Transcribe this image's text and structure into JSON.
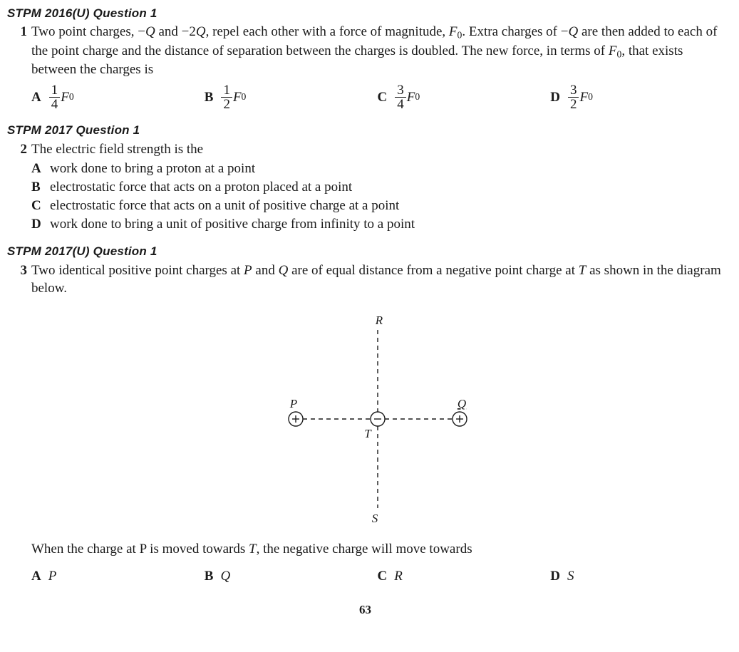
{
  "q1": {
    "source": "STPM 2016(U) Question 1",
    "number": "1",
    "stem_html": "Two point charges, &minus;<span class='ital'>Q</span> and &minus;2<span class='ital'>Q</span>, repel each other with a force of magnitude, <span class='term-F'>F</span><span class='sub0'>0</span>. Extra charges of &minus;<span class='ital'>Q</span> are then added to each of the point charge and the distance of separation between the charges is doubled. The new force, in terms of <span class='term-F'>F</span><span class='sub0'>0</span>, that exists between the charges is",
    "choices": [
      {
        "label": "A",
        "num": "1",
        "den": "4"
      },
      {
        "label": "B",
        "num": "1",
        "den": "2"
      },
      {
        "label": "C",
        "num": "3",
        "den": "4"
      },
      {
        "label": "D",
        "num": "3",
        "den": "2"
      }
    ]
  },
  "q2": {
    "source": "STPM 2017 Question 1",
    "number": "2",
    "stem": "The electric field strength is the",
    "choices": [
      {
        "label": "A",
        "text": "work done to bring a proton at a point"
      },
      {
        "label": "B",
        "text": "electrostatic force that acts on a proton placed at a point"
      },
      {
        "label": "C",
        "text": "electrostatic force that acts on a unit of positive charge at a point"
      },
      {
        "label": "D",
        "text": "work done to bring a unit of positive charge from infinity to a point"
      }
    ]
  },
  "q3": {
    "source": "STPM 2017(U) Question 1",
    "number": "3",
    "stem_html": "Two identical positive point charges at <span class='ital'>P</span> and <span class='ital'>Q</span> are of equal distance from a negative point charge at <span class='ital'>T</span> as shown in the diagram below.",
    "diagram": {
      "labels": {
        "P": "P",
        "Q": "Q",
        "R": "R",
        "S": "S",
        "T": "T"
      },
      "charge_radius": 10,
      "colors": {
        "stroke": "#1a1a1a",
        "bg": "#ffffff"
      },
      "line_dash": "6,5",
      "line_width": 1.4,
      "font_size": 17
    },
    "followup_html": "When the charge at P is moved towards <span class='ital'>T</span>, the negative charge will move towards",
    "choices": [
      {
        "label": "A",
        "text": "P"
      },
      {
        "label": "B",
        "text": "Q"
      },
      {
        "label": "C",
        "text": "R"
      },
      {
        "label": "D",
        "text": "S"
      }
    ]
  },
  "page_number": "63"
}
